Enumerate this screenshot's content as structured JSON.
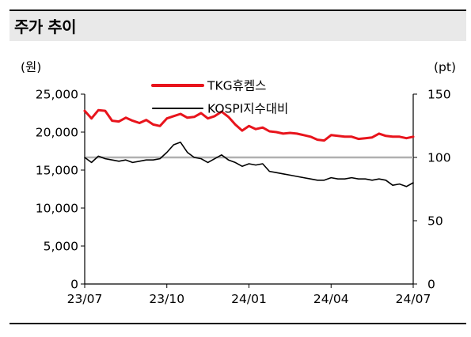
{
  "header": {
    "title": "주가 추이"
  },
  "chart_data": {
    "type": "line",
    "left_unit": "(원)",
    "right_unit": "(pt)",
    "x_ticks": [
      "23/07",
      "23/10",
      "24/01",
      "24/04",
      "24/07"
    ],
    "y_left": {
      "ticks": [
        "0",
        "5,000",
        "10,000",
        "15,000",
        "20,000",
        "25,000"
      ],
      "range": [
        0,
        25000
      ]
    },
    "y_right": {
      "ticks": [
        "0",
        "50",
        "100",
        "150"
      ],
      "range": [
        0,
        150
      ]
    },
    "reference_line_right": 100,
    "series": [
      {
        "name": "TKG휴켐스",
        "axis": "left",
        "color": "#e8141c",
        "values": [
          22800,
          21800,
          22900,
          22800,
          21500,
          21400,
          21900,
          21500,
          21200,
          21600,
          21000,
          20800,
          21800,
          22100,
          22400,
          21900,
          22000,
          22500,
          21800,
          22100,
          22700,
          22000,
          21000,
          20200,
          20800,
          20400,
          20600,
          20100,
          20000,
          19800,
          19900,
          19800,
          19600,
          19400,
          19000,
          18900,
          19600,
          19500,
          19400,
          19400,
          19100,
          19200,
          19300,
          19800,
          19500,
          19400,
          19400,
          19200,
          19400
        ]
      },
      {
        "name": "KOSPI지수대비",
        "axis": "right",
        "color": "#000000",
        "values": [
          100,
          96,
          101,
          99,
          98,
          97,
          98,
          96,
          97,
          98,
          98,
          99,
          104,
          110,
          112,
          104,
          100,
          99,
          96,
          99,
          102,
          98,
          96,
          93,
          95,
          94,
          95,
          89,
          88,
          87,
          86,
          85,
          84,
          83,
          82,
          82,
          84,
          83,
          83,
          84,
          83,
          83,
          82,
          83,
          82,
          78,
          79,
          77,
          80
        ]
      }
    ]
  }
}
